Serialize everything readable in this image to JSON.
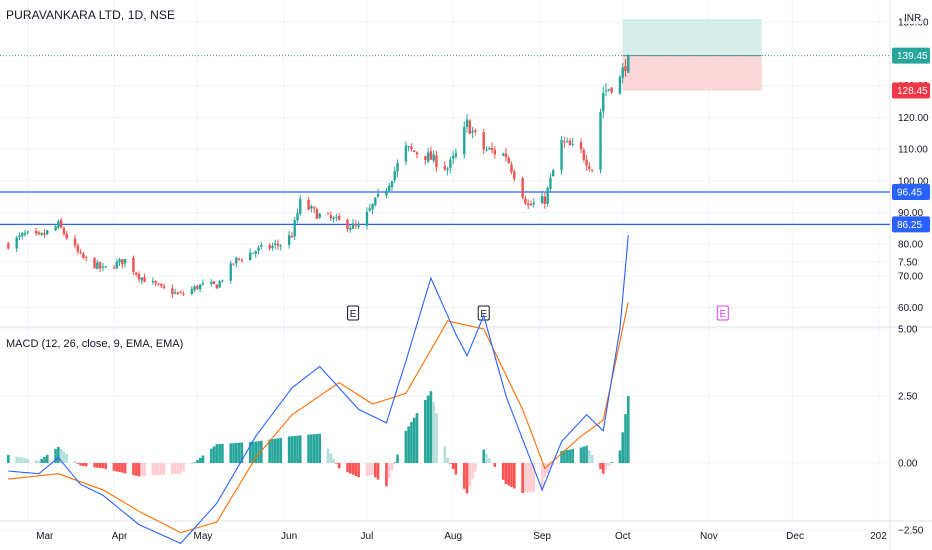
{
  "title": "PURAVANKARA LTD, 1D, NSE",
  "macd_title": "MACD (12, 26, close, 9, EMA, EMA)",
  "currency": "INR",
  "colors": {
    "up": "#26a69a",
    "down": "#ef5350",
    "hline": "#2962ff",
    "macd": "#2962ff",
    "signal": "#ff6d00",
    "target": "#d1ece8",
    "stop": "#fcd3d3",
    "last_tag": "#26a69a",
    "stop_tag": "#f23645"
  },
  "chart_data": [
    {
      "type": "candlestick",
      "y_ticks": [
        "150.00",
        "130.00",
        "120.00",
        "110.00",
        "100.00",
        "90.00",
        "80.00",
        "70.00",
        "60.00"
      ],
      "ylim": [
        57,
        151
      ],
      "x_ticks": [
        "Mar",
        "Apr",
        "May",
        "Jun",
        "Jul",
        "Aug",
        "Sep",
        "Oct",
        "Nov",
        "Dec",
        "202"
      ],
      "price_tags": [
        {
          "label": "139.45",
          "value": 139.45,
          "kind": "last"
        },
        {
          "label": "128.45",
          "value": 128.45,
          "kind": "stop"
        },
        {
          "label": "96.45",
          "value": 96.45,
          "kind": "hline"
        },
        {
          "label": "86.25",
          "value": 86.25,
          "kind": "hline"
        }
      ],
      "horizontal_lines": [
        96.45,
        86.25
      ],
      "position_box": {
        "entry": 139.45,
        "target": 151,
        "stop": 128.45,
        "from": "2024-10-01",
        "to": "2024-11-20"
      },
      "earnings_markers": [
        {
          "label": "E",
          "date": "2024-06-26"
        },
        {
          "label": "E",
          "date": "2024-08-12"
        },
        {
          "label": "E",
          "date": "2024-11-06"
        }
      ],
      "anchors": [
        [
          "2024-02-23",
          80
        ],
        [
          "2024-02-29",
          83
        ],
        [
          "2024-03-05",
          82
        ],
        [
          "2024-03-12",
          86
        ],
        [
          "2024-03-20",
          76
        ],
        [
          "2024-03-28",
          72
        ],
        [
          "2024-04-05",
          75
        ],
        [
          "2024-04-10",
          70
        ],
        [
          "2024-04-18",
          66
        ],
        [
          "2024-04-25",
          64
        ],
        [
          "2024-05-02",
          67
        ],
        [
          "2024-05-08",
          67
        ],
        [
          "2024-05-15",
          75
        ],
        [
          "2024-05-22",
          78
        ],
        [
          "2024-05-31",
          80
        ],
        [
          "2024-06-04",
          83
        ],
        [
          "2024-06-07",
          93
        ],
        [
          "2024-06-14",
          89
        ],
        [
          "2024-06-21",
          87
        ],
        [
          "2024-06-28",
          85
        ],
        [
          "2024-07-03",
          92
        ],
        [
          "2024-07-08",
          98
        ],
        [
          "2024-07-15",
          110
        ],
        [
          "2024-07-22",
          108
        ],
        [
          "2024-07-30",
          104
        ],
        [
          "2024-08-02",
          108
        ],
        [
          "2024-08-06",
          118
        ],
        [
          "2024-08-12",
          110
        ],
        [
          "2024-08-20",
          108
        ],
        [
          "2024-08-28",
          92
        ],
        [
          "2024-09-03",
          94
        ],
        [
          "2024-09-09",
          112
        ],
        [
          "2024-09-16",
          109
        ],
        [
          "2024-09-20",
          104
        ],
        [
          "2024-09-24",
          128
        ],
        [
          "2024-09-30",
          132
        ],
        [
          "2024-10-03",
          139.45
        ]
      ],
      "macd_y_ticks": [
        "7.50",
        "5.00",
        "2.50",
        "0.00",
        "−2.50"
      ],
      "macd_ylim": [
        -3.8,
        9.8
      ],
      "macd_anchors": [
        [
          "2024-02-23",
          -0.3
        ],
        [
          "2024-03-05",
          -0.4
        ],
        [
          "2024-03-12",
          0.2
        ],
        [
          "2024-03-20",
          -0.8
        ],
        [
          "2024-03-28",
          -1.2
        ],
        [
          "2024-04-10",
          -2.3
        ],
        [
          "2024-04-25",
          -3.0
        ],
        [
          "2024-05-08",
          -1.5
        ],
        [
          "2024-05-22",
          1.0
        ],
        [
          "2024-06-04",
          2.8
        ],
        [
          "2024-06-14",
          3.6
        ],
        [
          "2024-06-28",
          2.0
        ],
        [
          "2024-07-08",
          1.5
        ],
        [
          "2024-07-15",
          3.8
        ],
        [
          "2024-07-24",
          6.9
        ],
        [
          "2024-08-02",
          4.8
        ],
        [
          "2024-08-06",
          4.0
        ],
        [
          "2024-08-12",
          5.5
        ],
        [
          "2024-08-20",
          2.5
        ],
        [
          "2024-09-02",
          -1.0
        ],
        [
          "2024-09-09",
          0.8
        ],
        [
          "2024-09-18",
          1.8
        ],
        [
          "2024-09-24",
          1.2
        ],
        [
          "2024-09-30",
          5.0
        ],
        [
          "2024-10-03",
          8.5
        ]
      ],
      "signal_anchors": [
        [
          "2024-02-23",
          -0.6
        ],
        [
          "2024-03-12",
          -0.4
        ],
        [
          "2024-03-28",
          -1.0
        ],
        [
          "2024-04-10",
          -1.8
        ],
        [
          "2024-04-25",
          -2.6
        ],
        [
          "2024-05-08",
          -2.2
        ],
        [
          "2024-05-22",
          0.2
        ],
        [
          "2024-06-04",
          1.8
        ],
        [
          "2024-06-21",
          3.0
        ],
        [
          "2024-07-03",
          2.2
        ],
        [
          "2024-07-15",
          2.6
        ],
        [
          "2024-07-30",
          5.3
        ],
        [
          "2024-08-12",
          5.0
        ],
        [
          "2024-08-26",
          2.0
        ],
        [
          "2024-09-03",
          -0.2
        ],
        [
          "2024-09-16",
          1.0
        ],
        [
          "2024-09-24",
          1.6
        ],
        [
          "2024-10-03",
          6.0
        ]
      ]
    }
  ]
}
